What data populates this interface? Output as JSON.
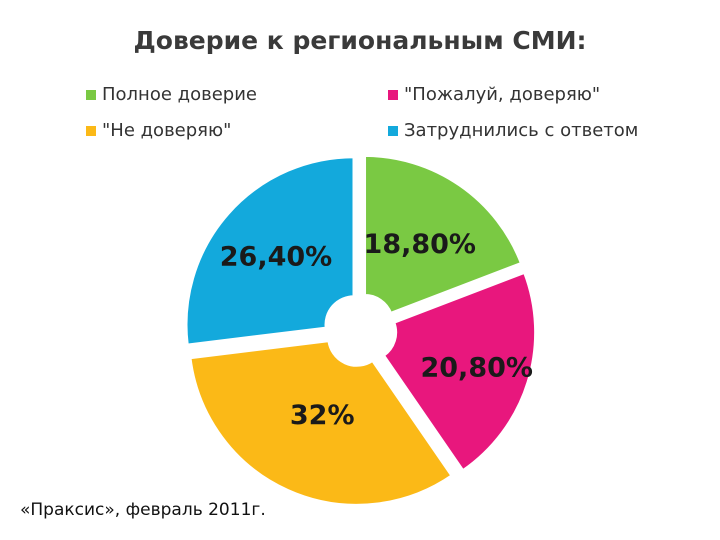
{
  "title": "Доверие к региональным СМИ:",
  "source": "«Праксис», февраль 2011г.",
  "chart_data": {
    "type": "pie",
    "title": "Доверие к региональным СМИ:",
    "slices": [
      {
        "label": "Полное доверие",
        "value": 18.8,
        "display": "18,80%",
        "color": "#7ac943"
      },
      {
        "label": "\"Пожалуй, доверяю\"",
        "value": 20.8,
        "display": "20,80%",
        "color": "#e8177d"
      },
      {
        "label": "\"Не доверяю\"",
        "value": 32,
        "display": "32%",
        "color": "#fbb917"
      },
      {
        "label": "Затруднились с ответом",
        "value": 26.4,
        "display": "26,40%",
        "color": "#13a9dc"
      }
    ],
    "legend_position": "top",
    "donut_hole": true,
    "exploded": true
  }
}
